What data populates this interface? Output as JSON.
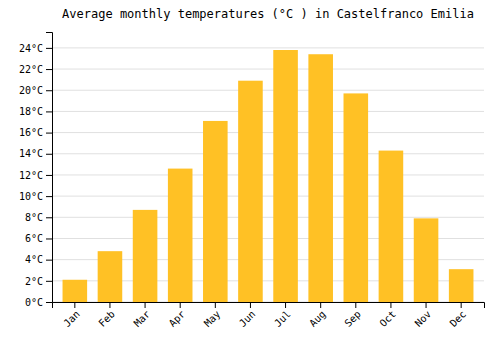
{
  "chart_data": {
    "type": "bar",
    "title": "Average monthly temperatures (°C ) in Castelfranco Emilia",
    "categories": [
      "Jan",
      "Feb",
      "Mar",
      "Apr",
      "May",
      "Jun",
      "Jul",
      "Aug",
      "Sep",
      "Oct",
      "Nov",
      "Dec"
    ],
    "values": [
      2.1,
      4.8,
      8.7,
      12.6,
      17.1,
      20.9,
      23.8,
      23.4,
      19.7,
      14.3,
      7.9,
      3.1
    ],
    "color": "#FFC125",
    "ylim": [
      0,
      25.5
    ],
    "yticks": [
      {
        "value": 0,
        "label": "0°C"
      },
      {
        "value": 2,
        "label": "2°C"
      },
      {
        "value": 4,
        "label": "4°C"
      },
      {
        "value": 6,
        "label": "6°C"
      },
      {
        "value": 8,
        "label": "8°C"
      },
      {
        "value": 10,
        "label": "10°C"
      },
      {
        "value": 12,
        "label": "12°C"
      },
      {
        "value": 14,
        "label": "14°C"
      },
      {
        "value": 16,
        "label": "16°C"
      },
      {
        "value": 18,
        "label": "18°C"
      },
      {
        "value": 20,
        "label": "20°C"
      },
      {
        "value": 22,
        "label": "22°C"
      },
      {
        "value": 24,
        "label": "24°C"
      }
    ],
    "grid": true
  }
}
